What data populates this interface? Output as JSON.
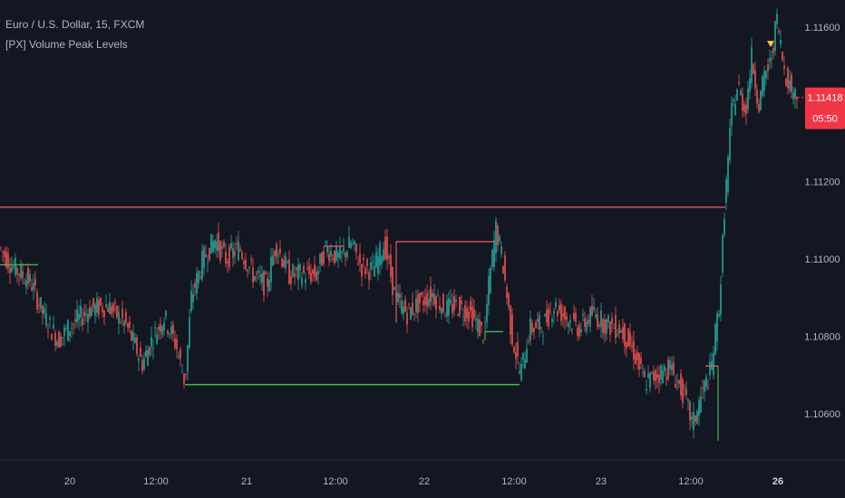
{
  "header": {
    "symbol_title": "Euro / U.S. Dollar, 15, FXCM",
    "indicator_title": "[PX] Volume Peak Levels"
  },
  "colors": {
    "background": "#131722",
    "up": "#26a69a",
    "down": "#ef5350",
    "resistance_level": "#e05563",
    "support_level": "#4caf50",
    "marker": "#f7c948",
    "badge": "#f23645",
    "axis_text": "#b2b5be"
  },
  "price_badge": {
    "price": "1.11418",
    "countdown": "05:50"
  },
  "chart_data": {
    "type": "candlestick",
    "title": "Euro / U.S. Dollar, 15, FXCM",
    "indicator": "[PX] Volume Peak Levels",
    "y_axis": {
      "ylim": [
        1.1048,
        1.1167
      ],
      "ticks": [
        {
          "value": 1.106,
          "label": "1.10600"
        },
        {
          "value": 1.108,
          "label": "1.10800"
        },
        {
          "value": 1.11,
          "label": "1.11000"
        },
        {
          "value": 1.112,
          "label": "1.11200"
        },
        {
          "value": 1.116,
          "label": "1.11600"
        }
      ]
    },
    "x_axis": {
      "xlim": [
        0,
        880
      ],
      "ticks": [
        {
          "bar": 77,
          "label": "20",
          "bold": false
        },
        {
          "bar": 172,
          "label": "12:00",
          "bold": false
        },
        {
          "bar": 272,
          "label": "21",
          "bold": false
        },
        {
          "bar": 370,
          "label": "12:00",
          "bold": false
        },
        {
          "bar": 468,
          "label": "22",
          "bold": false
        },
        {
          "bar": 567,
          "label": "12:00",
          "bold": false
        },
        {
          "bar": 663,
          "label": "23",
          "bold": false
        },
        {
          "bar": 762,
          "label": "12:00",
          "bold": false
        },
        {
          "bar": 858,
          "label": "26",
          "bold": true
        }
      ]
    },
    "price_path": [
      [
        0,
        1.1103
      ],
      [
        15,
        1.1098
      ],
      [
        35,
        1.1094
      ],
      [
        50,
        1.1085
      ],
      [
        65,
        1.1079
      ],
      [
        80,
        1.1083
      ],
      [
        100,
        1.1087
      ],
      [
        120,
        1.1088
      ],
      [
        140,
        1.1083
      ],
      [
        158,
        1.1073
      ],
      [
        170,
        1.108
      ],
      [
        182,
        1.1085
      ],
      [
        195,
        1.1078
      ],
      [
        205,
        1.1068
      ],
      [
        212,
        1.109
      ],
      [
        225,
        1.11
      ],
      [
        238,
        1.1105
      ],
      [
        250,
        1.11
      ],
      [
        265,
        1.1103
      ],
      [
        280,
        1.1096
      ],
      [
        295,
        1.1093
      ],
      [
        305,
        1.1104
      ],
      [
        320,
        1.1096
      ],
      [
        335,
        1.1096
      ],
      [
        350,
        1.1096
      ],
      [
        360,
        1.1103
      ],
      [
        375,
        1.11
      ],
      [
        388,
        1.1104
      ],
      [
        400,
        1.1098
      ],
      [
        412,
        1.1097
      ],
      [
        425,
        1.1104
      ],
      [
        437,
        1.109
      ],
      [
        450,
        1.1086
      ],
      [
        465,
        1.1089
      ],
      [
        478,
        1.1091
      ],
      [
        492,
        1.1087
      ],
      [
        505,
        1.1088
      ],
      [
        520,
        1.1086
      ],
      [
        535,
        1.108
      ],
      [
        540,
        1.1093
      ],
      [
        548,
        1.1108
      ],
      [
        555,
        1.11
      ],
      [
        565,
        1.1081
      ],
      [
        575,
        1.107
      ],
      [
        585,
        1.1082
      ],
      [
        600,
        1.1083
      ],
      [
        612,
        1.1088
      ],
      [
        625,
        1.1085
      ],
      [
        640,
        1.1082
      ],
      [
        655,
        1.1086
      ],
      [
        670,
        1.1083
      ],
      [
        685,
        1.1082
      ],
      [
        700,
        1.1076
      ],
      [
        712,
        1.1068
      ],
      [
        725,
        1.107
      ],
      [
        740,
        1.1072
      ],
      [
        755,
        1.1065
      ],
      [
        765,
        1.1057
      ],
      [
        775,
        1.1065
      ],
      [
        785,
        1.1071
      ],
      [
        795,
        1.109
      ],
      [
        800,
        1.1113
      ],
      [
        808,
        1.1138
      ],
      [
        815,
        1.1145
      ],
      [
        823,
        1.1138
      ],
      [
        830,
        1.1152
      ],
      [
        838,
        1.114
      ],
      [
        845,
        1.1148
      ],
      [
        850,
        1.115
      ],
      [
        858,
        1.1162
      ],
      [
        865,
        1.115
      ],
      [
        872,
        1.1145
      ],
      [
        880,
        1.1142
      ]
    ],
    "levels": [
      {
        "kind": "resistance",
        "y": 1.11134,
        "x": [
          0,
          800
        ]
      },
      {
        "kind": "support",
        "y": 1.10985,
        "x": [
          0,
          42
        ]
      },
      {
        "kind": "support",
        "y": 1.10675,
        "x": [
          204,
          573
        ]
      },
      {
        "kind": "resistance",
        "y": 1.11033,
        "x": [
          357,
          380
        ]
      },
      {
        "kind": "resistance",
        "y": 1.11045,
        "x": [
          437,
          545
        ]
      },
      {
        "kind": "support",
        "y": 1.10812,
        "x": [
          535,
          555
        ]
      },
      {
        "kind": "resistance",
        "y": 1.10723,
        "x": [
          778,
          792
        ]
      }
    ],
    "level_connectors": [
      {
        "kind": "resistance",
        "x": 437,
        "y": [
          1.11045,
          1.10835
        ]
      },
      {
        "kind": "support",
        "x": 535,
        "y": [
          1.10812,
          1.1079
        ]
      },
      {
        "kind": "support",
        "x": 792,
        "y": [
          1.10723,
          1.1053
        ]
      }
    ],
    "markers": [
      {
        "shape": "triangle-down",
        "bar": 850,
        "y": 1.11555
      }
    ],
    "last_price": 1.11418
  }
}
